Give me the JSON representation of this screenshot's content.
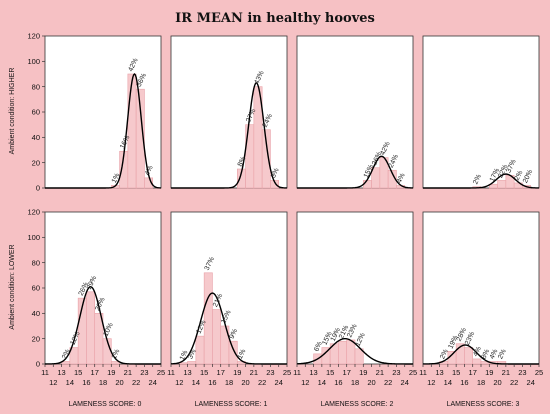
{
  "title": "IR MEAN in healthy hooves",
  "row_labels": [
    "Ambient condition: HIGHER",
    "Ambient condition: LOWER"
  ],
  "col_labels": [
    "LAMENESS SCORE: 0",
    "LAMENESS SCORE: 1",
    "LAMENESS SCORE: 2",
    "LAMENESS SCORE: 3"
  ],
  "colors": {
    "background": "#f6c1c4",
    "panel": "#ffffff",
    "bar_fill": "#f6c9cc",
    "bar_stroke": "#e9a2a8",
    "curve": "#000000"
  },
  "chart_data": {
    "type": "bar",
    "grid": false,
    "xlim": [
      11,
      25
    ],
    "ylim": [
      0,
      120
    ],
    "y_ticks": [
      0,
      20,
      40,
      60,
      80,
      100,
      120
    ],
    "x_ticks": [
      11,
      12,
      13,
      14,
      15,
      16,
      17,
      18,
      19,
      20,
      21,
      22,
      23,
      24,
      25
    ],
    "panels": [
      {
        "row": 0,
        "col": 0,
        "bars": [
          {
            "x": 19.5,
            "y": 2,
            "label": "1%"
          },
          {
            "x": 20.5,
            "y": 29,
            "label": "16%"
          },
          {
            "x": 21.5,
            "y": 90,
            "label": "42%"
          },
          {
            "x": 22.5,
            "y": 78,
            "label": "36%"
          },
          {
            "x": 23.5,
            "y": 8,
            "label": "4%"
          }
        ],
        "curve": {
          "mean": 21.8,
          "sd": 0.82,
          "peak": 90
        }
      },
      {
        "row": 0,
        "col": 1,
        "bars": [
          {
            "x": 19.5,
            "y": 15,
            "label": "8%"
          },
          {
            "x": 20.5,
            "y": 50,
            "label": "27%"
          },
          {
            "x": 21.5,
            "y": 80,
            "label": "43%"
          },
          {
            "x": 22.5,
            "y": 46,
            "label": "24%"
          },
          {
            "x": 23.5,
            "y": 6,
            "label": "3%"
          }
        ],
        "curve": {
          "mean": 21.3,
          "sd": 0.92,
          "peak": 83
        }
      },
      {
        "row": 0,
        "col": 2,
        "bars": [
          {
            "x": 19.5,
            "y": 6,
            "label": "15%"
          },
          {
            "x": 20.5,
            "y": 16,
            "label": "26%"
          },
          {
            "x": 21.5,
            "y": 24,
            "label": "42%"
          },
          {
            "x": 22.5,
            "y": 14,
            "label": "24%"
          },
          {
            "x": 23.5,
            "y": 2,
            "label": "4%"
          }
        ],
        "curve": {
          "mean": 21.2,
          "sd": 1.05,
          "peak": 25
        }
      },
      {
        "row": 0,
        "col": 3,
        "bars": [
          {
            "x": 17.5,
            "y": 1,
            "label": "2%"
          },
          {
            "x": 19.5,
            "y": 3,
            "label": "17%"
          },
          {
            "x": 20.5,
            "y": 6,
            "label": "22%"
          },
          {
            "x": 21.5,
            "y": 10,
            "label": "37%"
          },
          {
            "x": 22.5,
            "y": 4,
            "label": "2%"
          },
          {
            "x": 23.5,
            "y": 2,
            "label": "20%"
          }
        ],
        "curve": {
          "mean": 21.0,
          "sd": 1.15,
          "peak": 11
        }
      },
      {
        "row": 1,
        "col": 0,
        "bars": [
          {
            "x": 13.5,
            "y": 2,
            "label": "2%"
          },
          {
            "x": 14.5,
            "y": 13,
            "label": "12%"
          },
          {
            "x": 15.5,
            "y": 52,
            "label": "26%"
          },
          {
            "x": 16.5,
            "y": 57,
            "label": "29%"
          },
          {
            "x": 17.5,
            "y": 40,
            "label": "20%"
          },
          {
            "x": 18.5,
            "y": 20,
            "label": "10%"
          },
          {
            "x": 19.5,
            "y": 2,
            "label": "1%"
          }
        ],
        "curve": {
          "mean": 16.5,
          "sd": 1.3,
          "peak": 61
        }
      },
      {
        "row": 1,
        "col": 1,
        "bars": [
          {
            "x": 12.5,
            "y": 1,
            "label": "1%"
          },
          {
            "x": 13.5,
            "y": 2,
            "label": "3%"
          },
          {
            "x": 14.5,
            "y": 22,
            "label": "12%"
          },
          {
            "x": 15.5,
            "y": 72,
            "label": "37%"
          },
          {
            "x": 16.5,
            "y": 43,
            "label": "21%"
          },
          {
            "x": 17.5,
            "y": 30,
            "label": "15%"
          },
          {
            "x": 18.5,
            "y": 18,
            "label": "9%"
          },
          {
            "x": 19.5,
            "y": 2,
            "label": "1%"
          }
        ],
        "curve": {
          "mean": 16.0,
          "sd": 1.42,
          "peak": 56
        }
      },
      {
        "row": 1,
        "col": 2,
        "bars": [
          {
            "x": 13.5,
            "y": 8,
            "label": "6%"
          },
          {
            "x": 14.5,
            "y": 13,
            "label": "15%"
          },
          {
            "x": 15.5,
            "y": 16,
            "label": "19%"
          },
          {
            "x": 16.5,
            "y": 18,
            "label": "21%"
          },
          {
            "x": 17.5,
            "y": 19,
            "label": "23%"
          },
          {
            "x": 18.5,
            "y": 12,
            "label": "12%"
          }
        ],
        "curve": {
          "mean": 16.8,
          "sd": 1.85,
          "peak": 20
        }
      },
      {
        "row": 1,
        "col": 3,
        "bars": [
          {
            "x": 13.5,
            "y": 2,
            "label": "2%"
          },
          {
            "x": 14.5,
            "y": 10,
            "label": "19%"
          },
          {
            "x": 15.5,
            "y": 16,
            "label": "28%"
          },
          {
            "x": 16.5,
            "y": 13,
            "label": "23%"
          },
          {
            "x": 17.5,
            "y": 4,
            "label": "4%"
          },
          {
            "x": 18.5,
            "y": 2,
            "label": "8%"
          },
          {
            "x": 19.5,
            "y": 2,
            "label": "4%"
          },
          {
            "x": 20.5,
            "y": 2,
            "label": "2%"
          }
        ],
        "curve": {
          "mean": 16.1,
          "sd": 1.35,
          "peak": 15
        }
      }
    ]
  }
}
